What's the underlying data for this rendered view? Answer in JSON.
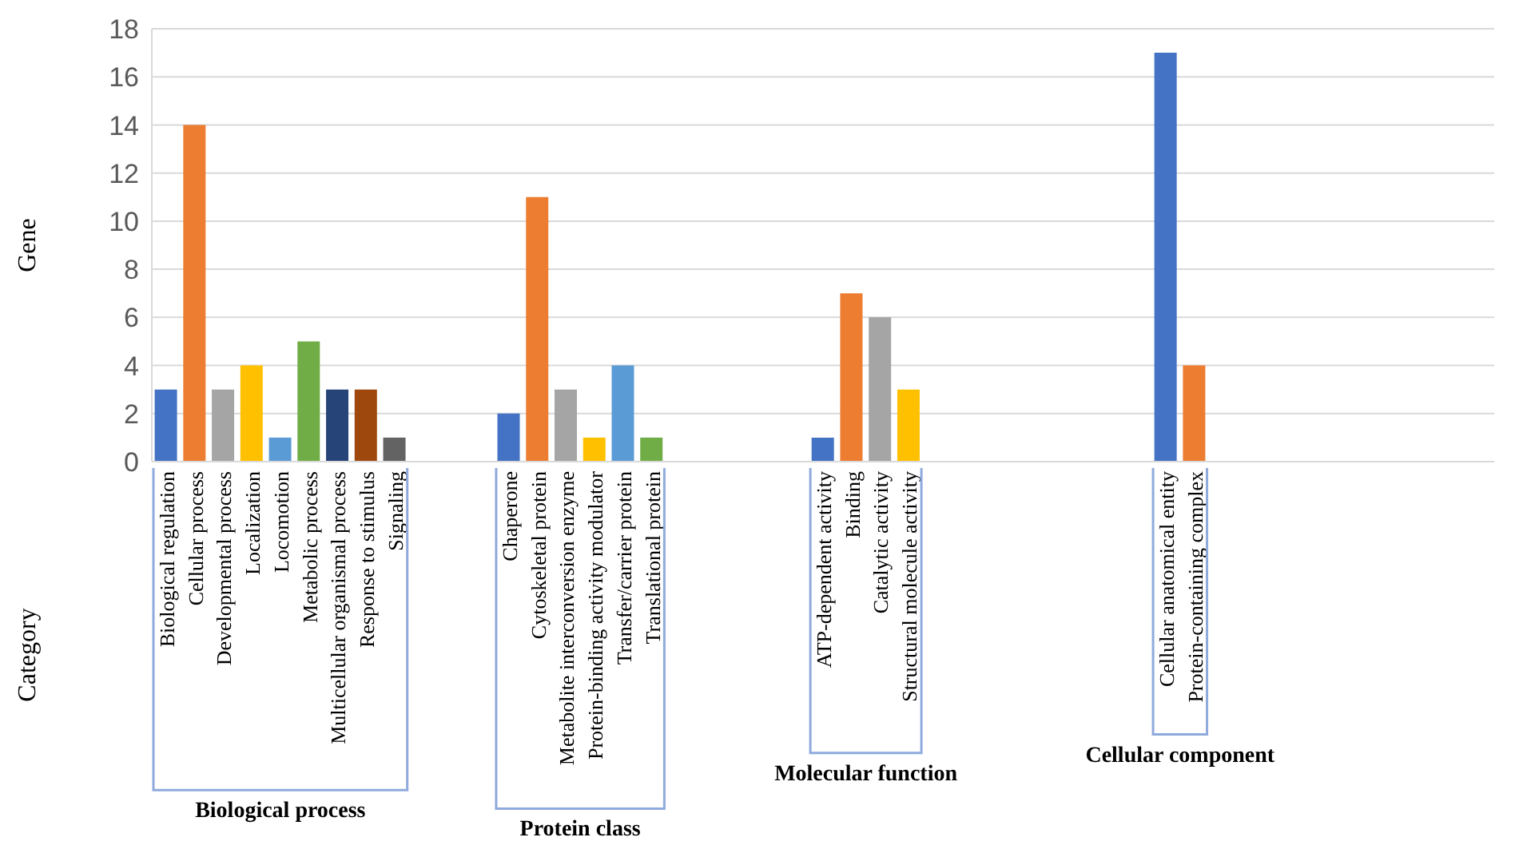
{
  "chart_data": {
    "type": "bar",
    "ylabel": "Gene",
    "categories": [
      "Biological regulation",
      "Cellular process",
      "Developmental process",
      "Localization",
      "Locomotion",
      "Metabolic process",
      "Multicellular organismal process",
      "Response to stimulus",
      "Signaling",
      null,
      null,
      null,
      "Chaperone",
      "Cytoskeletal protein",
      "Metabolite interconversion enzyme",
      "Protein-binding activity modulator",
      "Transfer/carrier protein",
      "Translational protein",
      null,
      null,
      null,
      null,
      null,
      "ATP-dependent activity",
      "Binding",
      "Catalytic activity",
      "Structural molecule activity",
      null,
      null,
      null,
      null,
      null,
      null,
      null,
      null,
      "Cellular anatomical entity",
      "Protein-containing complex",
      null,
      null,
      null,
      null,
      null,
      null,
      null,
      null,
      null,
      null
    ],
    "values": [
      3,
      14,
      3,
      4,
      1,
      5,
      3,
      3,
      1,
      null,
      null,
      null,
      2,
      11,
      3,
      1,
      4,
      1,
      null,
      null,
      null,
      null,
      null,
      1,
      7,
      6,
      3,
      null,
      null,
      null,
      null,
      null,
      null,
      null,
      null,
      17,
      4,
      null,
      null,
      null,
      null,
      null,
      null,
      null,
      null,
      null,
      null
    ],
    "colors": [
      "#4472c4",
      "#ed7d31",
      "#a5a5a5",
      "#ffc000",
      "#5b9bd5",
      "#70ad47",
      "#264478",
      "#9e480e",
      "#636363",
      null,
      null,
      null,
      "#4472c4",
      "#ed7d31",
      "#a5a5a5",
      "#ffc000",
      "#5b9bd5",
      "#70ad47",
      null,
      null,
      null,
      null,
      null,
      "#4472c4",
      "#ed7d31",
      "#a5a5a5",
      "#ffc000",
      null,
      null,
      null,
      null,
      null,
      null,
      null,
      null,
      "#4472c4",
      "#ed7d31",
      null,
      null,
      null,
      null,
      null,
      null,
      null,
      null,
      null,
      null
    ],
    "annotations": [
      "Category",
      "Biological process",
      "Protein class",
      "Molecular function",
      "Cellular component"
    ],
    "ylim": [
      0,
      18
    ],
    "yticks": [
      0,
      2,
      4,
      6,
      8,
      10,
      12,
      14,
      16,
      18
    ],
    "grid": "y"
  }
}
